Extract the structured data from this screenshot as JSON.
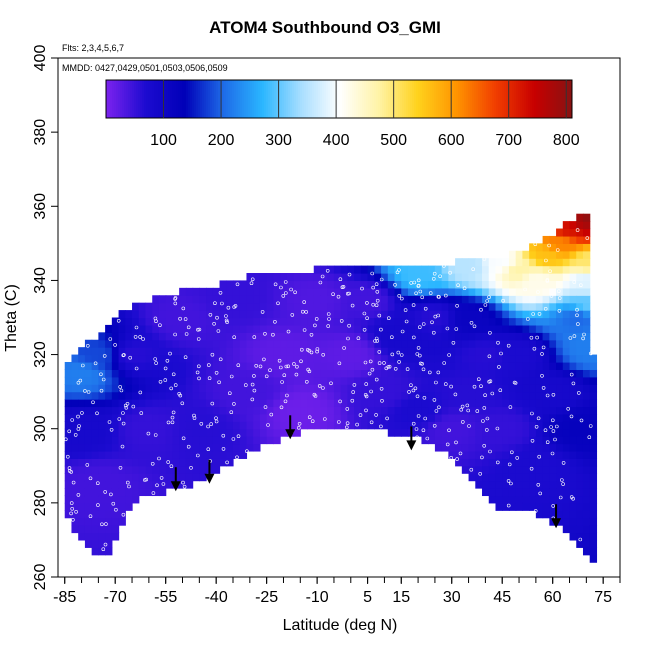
{
  "chart_data": {
    "type": "heatmap",
    "title": "ATOM4 Southbound O3_GMI",
    "flights_label": "Flts: 2,3,4,5,6,7",
    "dates_label": "MMDD: 0427,0429,0501,0503,0506,0509",
    "xlabel": "Latitude (deg N)",
    "ylabel": "Theta (C)",
    "xlim": [
      -87,
      80
    ],
    "ylim": [
      260,
      400
    ],
    "x_ticks": [
      -85,
      -70,
      -55,
      -40,
      -25,
      -10,
      5,
      15,
      30,
      45,
      60,
      75
    ],
    "y_ticks": [
      260,
      280,
      300,
      320,
      340,
      360,
      380,
      400
    ],
    "colorbar": {
      "min": 0,
      "max": 810,
      "ticks": [
        100,
        200,
        300,
        400,
        500,
        600,
        700,
        800
      ],
      "colors": [
        "#7a22ee",
        "#1c0bd0",
        "#0000b8",
        "#1e6be8",
        "#2ab6ff",
        "#a8deff",
        "#ffffff",
        "#fff3a6",
        "#ffd21c",
        "#ff9400",
        "#f13e00",
        "#c80000",
        "#861313"
      ]
    },
    "data_region": {
      "upper_envelope": [
        [
          -85,
          317
        ],
        [
          -82,
          319
        ],
        [
          -78,
          323
        ],
        [
          -73,
          327
        ],
        [
          -68,
          331
        ],
        [
          -62,
          334
        ],
        [
          -55,
          336
        ],
        [
          -47,
          338
        ],
        [
          -38,
          339
        ],
        [
          -30,
          341
        ],
        [
          -20,
          342
        ],
        [
          -10,
          343
        ],
        [
          0,
          343
        ],
        [
          10,
          343
        ],
        [
          18,
          343
        ],
        [
          25,
          344
        ],
        [
          32,
          345
        ],
        [
          40,
          346
        ],
        [
          48,
          347
        ],
        [
          55,
          350
        ],
        [
          62,
          354
        ],
        [
          67,
          357
        ],
        [
          70,
          358
        ],
        [
          71,
          345
        ],
        [
          72,
          320
        ],
        [
          72,
          300
        ]
      ],
      "lower_envelope": [
        [
          -85,
          280
        ],
        [
          -83,
          274
        ],
        [
          -80,
          270
        ],
        [
          -76,
          266
        ],
        [
          -72,
          266
        ],
        [
          -68,
          274
        ],
        [
          -64,
          281
        ],
        [
          -60,
          282
        ],
        [
          -55,
          283
        ],
        [
          -50,
          284
        ],
        [
          -45,
          286
        ],
        [
          -38,
          290
        ],
        [
          -30,
          294
        ],
        [
          -22,
          297
        ],
        [
          -15,
          299
        ],
        [
          -8,
          301
        ],
        [
          0,
          300
        ],
        [
          6,
          300
        ],
        [
          12,
          299
        ],
        [
          18,
          298
        ],
        [
          24,
          296
        ],
        [
          30,
          292
        ],
        [
          36,
          287
        ],
        [
          40,
          283
        ],
        [
          45,
          278
        ],
        [
          50,
          278
        ],
        [
          55,
          277
        ],
        [
          60,
          275
        ],
        [
          65,
          272
        ],
        [
          69,
          266
        ],
        [
          72,
          264
        ]
      ],
      "field_samples": [
        {
          "lat": -80,
          "theta": 315,
          "o3": 220
        },
        {
          "lat": -75,
          "theta": 320,
          "o3": 180
        },
        {
          "lat": -80,
          "theta": 300,
          "o3": 80
        },
        {
          "lat": -75,
          "theta": 285,
          "o3": 40
        },
        {
          "lat": -65,
          "theta": 320,
          "o3": 60
        },
        {
          "lat": -60,
          "theta": 300,
          "o3": 50
        },
        {
          "lat": -50,
          "theta": 330,
          "o3": 40
        },
        {
          "lat": -45,
          "theta": 300,
          "o3": 60
        },
        {
          "lat": -35,
          "theta": 335,
          "o3": 50
        },
        {
          "lat": -30,
          "theta": 310,
          "o3": 40
        },
        {
          "lat": -20,
          "theta": 320,
          "o3": 20
        },
        {
          "lat": -15,
          "theta": 305,
          "o3": 10
        },
        {
          "lat": -10,
          "theta": 335,
          "o3": 30
        },
        {
          "lat": 0,
          "theta": 320,
          "o3": 20
        },
        {
          "lat": 5,
          "theta": 335,
          "o3": 40
        },
        {
          "lat": 10,
          "theta": 310,
          "o3": 50
        },
        {
          "lat": 15,
          "theta": 325,
          "o3": 80
        },
        {
          "lat": 20,
          "theta": 305,
          "o3": 70
        },
        {
          "lat": 25,
          "theta": 330,
          "o3": 60
        },
        {
          "lat": 30,
          "theta": 300,
          "o3": 40
        },
        {
          "lat": 35,
          "theta": 330,
          "o3": 110
        },
        {
          "lat": 35,
          "theta": 310,
          "o3": 60
        },
        {
          "lat": 40,
          "theta": 320,
          "o3": 60
        },
        {
          "lat": 45,
          "theta": 300,
          "o3": 50
        },
        {
          "lat": 50,
          "theta": 320,
          "o3": 70
        },
        {
          "lat": 55,
          "theta": 290,
          "o3": 70
        },
        {
          "lat": 60,
          "theta": 310,
          "o3": 80
        },
        {
          "lat": 68,
          "theta": 330,
          "o3": 200
        },
        {
          "lat": 68,
          "theta": 300,
          "o3": 120
        },
        {
          "lat": 20,
          "theta": 342,
          "o3": 280
        },
        {
          "lat": 35,
          "theta": 344,
          "o3": 350
        },
        {
          "lat": 45,
          "theta": 345,
          "o3": 400
        },
        {
          "lat": 50,
          "theta": 343,
          "o3": 470
        },
        {
          "lat": 55,
          "theta": 340,
          "o3": 420
        },
        {
          "lat": 58,
          "theta": 347,
          "o3": 560
        },
        {
          "lat": 62,
          "theta": 350,
          "o3": 620
        },
        {
          "lat": 65,
          "theta": 354,
          "o3": 720
        },
        {
          "lat": 68,
          "theta": 356,
          "o3": 770
        },
        {
          "lat": 70,
          "theta": 357,
          "o3": 800
        },
        {
          "lat": 71,
          "theta": 345,
          "o3": 500
        },
        {
          "lat": 70,
          "theta": 340,
          "o3": 380
        },
        {
          "lat": 71,
          "theta": 333,
          "o3": 300
        },
        {
          "lat": 71,
          "theta": 322,
          "o3": 220
        }
      ]
    },
    "tropopause_arrows": [
      {
        "lat": -52,
        "theta": 288
      },
      {
        "lat": -42,
        "theta": 290
      },
      {
        "lat": -18,
        "theta": 302
      },
      {
        "lat": 18,
        "theta": 299
      },
      {
        "lat": 61,
        "theta": 278
      }
    ]
  }
}
